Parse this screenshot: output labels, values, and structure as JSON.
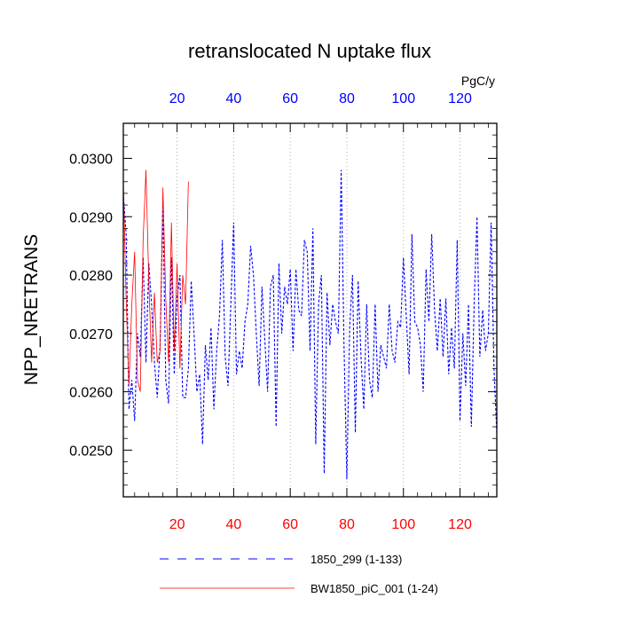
{
  "chart_data": {
    "type": "line",
    "title": "retranslocated N uptake flux",
    "ylabel": "NPP_NRETRANS",
    "units": "PgC/y",
    "xlim": [
      1,
      133
    ],
    "ylim": [
      0.0242,
      0.0306
    ],
    "x_ticks": [
      20,
      40,
      60,
      80,
      100,
      120
    ],
    "x_tick_labels": [
      "20",
      "40",
      "60",
      "80",
      "100",
      "120"
    ],
    "y_ticks": [
      0.025,
      0.026,
      0.027,
      0.028,
      0.029,
      0.03
    ],
    "y_tick_labels": [
      "0.0250",
      "0.0260",
      "0.0270",
      "0.0280",
      "0.0290",
      "0.0300"
    ],
    "bottom_axis_color": "#ff0000",
    "top_axis_color": "#0000ff",
    "series": [
      {
        "name": "1850_299 (1-133)",
        "color": "#0000ff",
        "dash": "dashed",
        "x_start": 1,
        "values": [
          0.0294,
          0.0287,
          0.0257,
          0.0262,
          0.0255,
          0.027,
          0.0266,
          0.0283,
          0.0265,
          0.0282,
          0.0275,
          0.0265,
          0.0259,
          0.0268,
          0.0292,
          0.0262,
          0.0258,
          0.0283,
          0.0263,
          0.0276,
          0.028,
          0.0259,
          0.0259,
          0.0264,
          0.0279,
          0.027,
          0.026,
          0.0263,
          0.0251,
          0.0268,
          0.0262,
          0.0271,
          0.0257,
          0.0267,
          0.0273,
          0.0286,
          0.0266,
          0.0261,
          0.0275,
          0.0289,
          0.0263,
          0.0267,
          0.0264,
          0.0272,
          0.0275,
          0.0285,
          0.028,
          0.027,
          0.0261,
          0.0278,
          0.0269,
          0.026,
          0.0278,
          0.028,
          0.0254,
          0.0282,
          0.027,
          0.0278,
          0.0275,
          0.0281,
          0.0267,
          0.0281,
          0.0274,
          0.0273,
          0.0286,
          0.0284,
          0.0267,
          0.0288,
          0.0251,
          0.0275,
          0.028,
          0.0246,
          0.0277,
          0.0268,
          0.0275,
          0.0272,
          0.027,
          0.0298,
          0.0268,
          0.0245,
          0.0271,
          0.028,
          0.0253,
          0.0279,
          0.0266,
          0.0257,
          0.0275,
          0.0262,
          0.0259,
          0.0275,
          0.026,
          0.0268,
          0.0266,
          0.0264,
          0.0275,
          0.0267,
          0.0265,
          0.0272,
          0.0271,
          0.0283,
          0.0273,
          0.0263,
          0.0287,
          0.0272,
          0.0271,
          0.0268,
          0.026,
          0.0281,
          0.0272,
          0.0287,
          0.0274,
          0.0267,
          0.0276,
          0.0266,
          0.0276,
          0.0263,
          0.0271,
          0.0264,
          0.0286,
          0.0255,
          0.027,
          0.0261,
          0.0275,
          0.0254,
          0.0275,
          0.029,
          0.0266,
          0.0274,
          0.0267,
          0.027,
          0.0289,
          0.0264,
          0.0253
        ]
      },
      {
        "name": "BW1850_piC_001 (1-24)",
        "color": "#ff0000",
        "dash": "solid",
        "x_start": 1,
        "values": [
          0.0296,
          0.0276,
          0.0261,
          0.0275,
          0.0284,
          0.0262,
          0.026,
          0.0286,
          0.0298,
          0.0279,
          0.0265,
          0.0277,
          0.0265,
          0.0267,
          0.0295,
          0.0276,
          0.0265,
          0.0289,
          0.0267,
          0.0282,
          0.0264,
          0.028,
          0.0275,
          0.0296
        ]
      }
    ],
    "legend": [
      {
        "label": "1850_299 (1-133)",
        "color": "#0000ff",
        "dash": "dashed"
      },
      {
        "label": "BW1850_piC_001 (1-24)",
        "color": "#ff0000",
        "dash": "solid"
      }
    ]
  }
}
